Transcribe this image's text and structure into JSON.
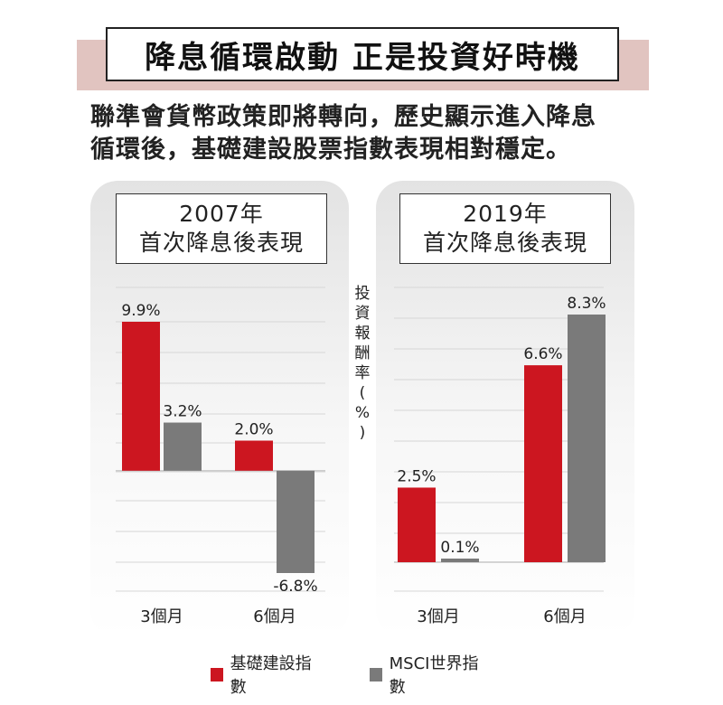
{
  "title": "降息循環啟動 正是投資好時機",
  "subtitle_lines": [
    "聯準會貨幣政策即將轉向，歷史顯示進入降息",
    "循環後，基礎建設股票指數表現相對穩定。"
  ],
  "y_axis_label_chars": [
    "投",
    "資",
    "報",
    "酬",
    "率",
    "(",
    "%",
    ")"
  ],
  "colors": {
    "infrastructure": "#cc1620",
    "msci": "#7a7a7a",
    "title_band": "#e1c4c0"
  },
  "legend": [
    {
      "label": "基礎建設指數",
      "color_key": "infrastructure"
    },
    {
      "label": "MSCI世界指數",
      "color_key": "msci"
    }
  ],
  "chart_data": [
    {
      "type": "bar",
      "panel_title_lines": [
        "2007年",
        "首次降息後表現"
      ],
      "categories": [
        "3個月",
        "6個月"
      ],
      "series": [
        {
          "name": "基礎建設指數",
          "values": [
            9.9,
            2.0
          ],
          "labels": [
            "9.9%",
            "2.0%"
          ]
        },
        {
          "name": "MSCI世界指數",
          "values": [
            3.2,
            -6.8
          ],
          "labels": [
            "3.2%",
            "-6.8%"
          ]
        }
      ],
      "ylim": [
        -7.5,
        10.5
      ],
      "grid": true
    },
    {
      "type": "bar",
      "panel_title_lines": [
        "2019年",
        "首次降息後表現"
      ],
      "categories": [
        "3個月",
        "6個月"
      ],
      "series": [
        {
          "name": "基礎建設指數",
          "values": [
            2.5,
            6.6
          ],
          "labels": [
            "2.5%",
            "6.6%"
          ]
        },
        {
          "name": "MSCI世界指數",
          "values": [
            0.1,
            8.3
          ],
          "labels": [
            "0.1%",
            "8.3%"
          ]
        }
      ],
      "ylim": [
        0,
        9.0
      ],
      "grid": true
    }
  ]
}
